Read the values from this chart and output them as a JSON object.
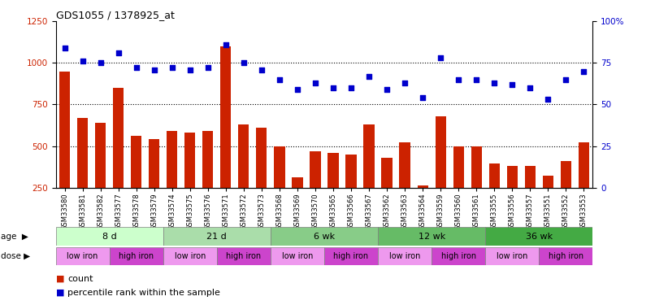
{
  "title": "GDS1055 / 1378925_at",
  "samples": [
    "GSM33580",
    "GSM33581",
    "GSM33582",
    "GSM33577",
    "GSM33578",
    "GSM33579",
    "GSM33574",
    "GSM33575",
    "GSM33576",
    "GSM33571",
    "GSM33572",
    "GSM33573",
    "GSM33568",
    "GSM33569",
    "GSM33570",
    "GSM33565",
    "GSM33566",
    "GSM33567",
    "GSM33562",
    "GSM33563",
    "GSM33564",
    "GSM33559",
    "GSM33560",
    "GSM33561",
    "GSM33555",
    "GSM33556",
    "GSM33557",
    "GSM33551",
    "GSM33552",
    "GSM33553"
  ],
  "counts": [
    950,
    670,
    640,
    850,
    560,
    540,
    590,
    580,
    590,
    1100,
    630,
    610,
    500,
    310,
    470,
    460,
    450,
    630,
    430,
    520,
    265,
    680,
    500,
    500,
    395,
    380,
    380,
    320,
    410,
    520
  ],
  "percentiles": [
    84,
    76,
    75,
    81,
    72,
    71,
    72,
    71,
    72,
    86,
    75,
    71,
    65,
    59,
    63,
    60,
    60,
    67,
    59,
    63,
    54,
    78,
    65,
    65,
    63,
    62,
    60,
    53,
    65,
    70
  ],
  "ylim_left": [
    250,
    1250
  ],
  "ylim_right": [
    0,
    100
  ],
  "yticks_left": [
    250,
    500,
    750,
    1000,
    1250
  ],
  "yticks_right": [
    0,
    25,
    50,
    75,
    100
  ],
  "bar_color": "#cc2200",
  "dot_color": "#0000cc",
  "age_groups": [
    {
      "label": "8 d",
      "start": 0,
      "end": 6,
      "color": "#ccffcc"
    },
    {
      "label": "21 d",
      "start": 6,
      "end": 12,
      "color": "#aaddaa"
    },
    {
      "label": "6 wk",
      "start": 12,
      "end": 18,
      "color": "#88cc88"
    },
    {
      "label": "12 wk",
      "start": 18,
      "end": 24,
      "color": "#66bb66"
    },
    {
      "label": "36 wk",
      "start": 24,
      "end": 30,
      "color": "#44aa44"
    }
  ],
  "dose_groups": [
    {
      "label": "low iron",
      "start": 0,
      "end": 3,
      "color": "#ee99ee"
    },
    {
      "label": "high iron",
      "start": 3,
      "end": 6,
      "color": "#cc44cc"
    },
    {
      "label": "low iron",
      "start": 6,
      "end": 9,
      "color": "#ee99ee"
    },
    {
      "label": "high iron",
      "start": 9,
      "end": 12,
      "color": "#cc44cc"
    },
    {
      "label": "low iron",
      "start": 12,
      "end": 15,
      "color": "#ee99ee"
    },
    {
      "label": "high iron",
      "start": 15,
      "end": 18,
      "color": "#cc44cc"
    },
    {
      "label": "low iron",
      "start": 18,
      "end": 21,
      "color": "#ee99ee"
    },
    {
      "label": "high iron",
      "start": 21,
      "end": 24,
      "color": "#cc44cc"
    },
    {
      "label": "low iron",
      "start": 24,
      "end": 27,
      "color": "#ee99ee"
    },
    {
      "label": "high iron",
      "start": 27,
      "end": 30,
      "color": "#cc44cc"
    }
  ],
  "hlines": [
    500,
    750,
    1000
  ],
  "background_color": "#ffffff"
}
